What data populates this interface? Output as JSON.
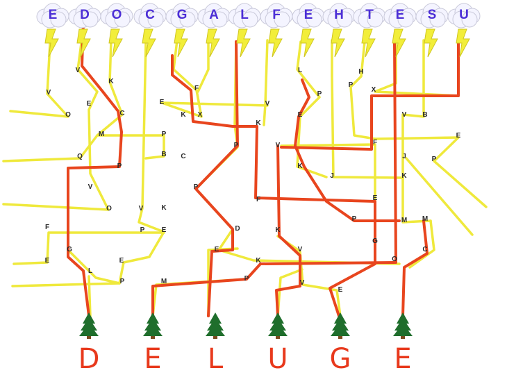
{
  "colors": {
    "cloud_text": "#4c2fd6",
    "cloud_fill": "#f4f4ff",
    "bolt": "#f2ee3a",
    "wire": "#efe93c",
    "path": "#e8451e",
    "answer": "#e8391c",
    "tree": "#1f6e2c"
  },
  "clouds": [
    {
      "letter": "E"
    },
    {
      "letter": "D"
    },
    {
      "letter": "O"
    },
    {
      "letter": "C"
    },
    {
      "letter": "G"
    },
    {
      "letter": "A"
    },
    {
      "letter": "L"
    },
    {
      "letter": "F"
    },
    {
      "letter": "E"
    },
    {
      "letter": "H"
    },
    {
      "letter": "T"
    },
    {
      "letter": "E"
    },
    {
      "letter": "S"
    },
    {
      "letter": "U"
    }
  ],
  "answer": [
    "D",
    "E",
    "L",
    "U",
    "G",
    "E"
  ],
  "nodes": [
    "V",
    "K",
    "V",
    "E",
    "C",
    "O",
    "M",
    "P",
    "Q",
    "P",
    "V",
    "O",
    "V",
    "K",
    "F",
    "P",
    "E",
    "G",
    "E",
    "E",
    "L",
    "P",
    "E",
    "K",
    "X",
    "F",
    "P",
    "P",
    "B",
    "C",
    "D",
    "E",
    "K",
    "V",
    "L",
    "P",
    "E",
    "V",
    "K",
    "J",
    "F",
    "P",
    "H",
    "X",
    "V",
    "B",
    "E",
    "P",
    "J",
    "K",
    "E",
    "F",
    "P",
    "M",
    "M",
    "G",
    "K"
  ]
}
